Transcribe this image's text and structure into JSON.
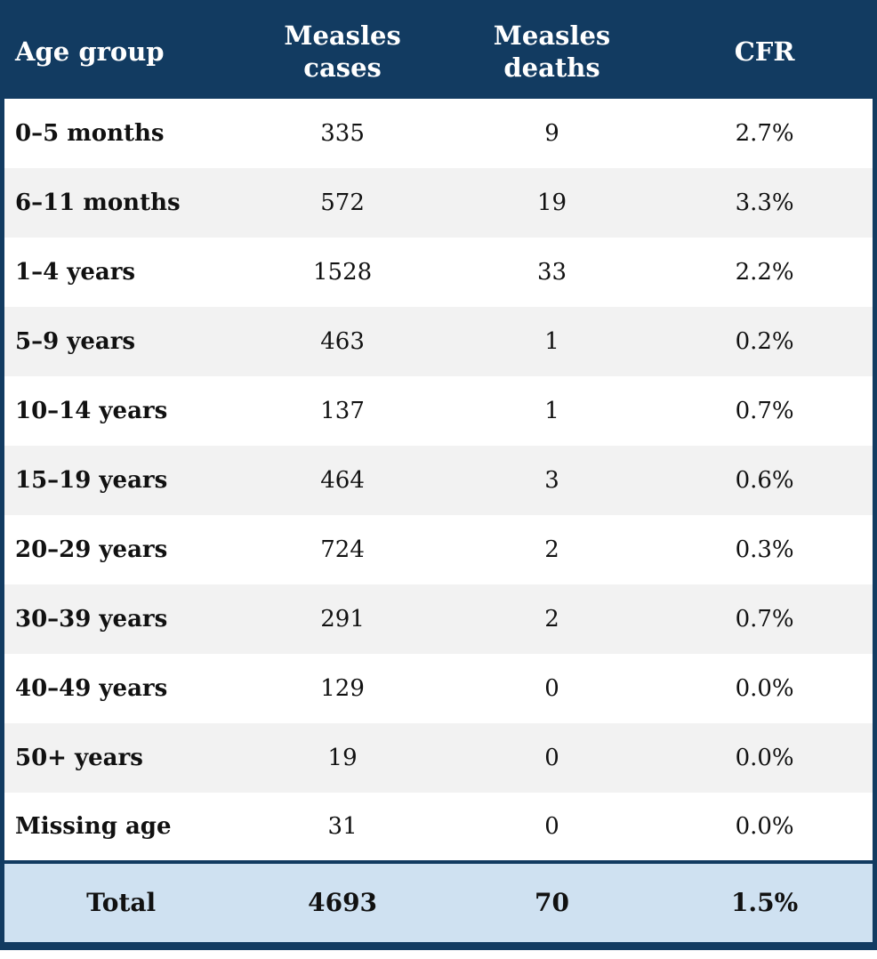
{
  "colors": {
    "header_bg": "#123b61",
    "border": "#123b61",
    "stripe_bg": "#f2f2f2",
    "total_bg": "#cfe1f1",
    "header_text": "#ffffff",
    "body_text": "#111111"
  },
  "chart_data": {
    "type": "table",
    "columns": [
      "Age group",
      "Measles\ncases",
      "Measles\ndeaths",
      "CFR"
    ],
    "rows": [
      {
        "age_group": "0–5 months",
        "cases": 335,
        "deaths": 9,
        "cfr": "2.7%"
      },
      {
        "age_group": "6–11 months",
        "cases": 572,
        "deaths": 19,
        "cfr": "3.3%"
      },
      {
        "age_group": "1–4 years",
        "cases": 1528,
        "deaths": 33,
        "cfr": "2.2%"
      },
      {
        "age_group": "5–9 years",
        "cases": 463,
        "deaths": 1,
        "cfr": "0.2%"
      },
      {
        "age_group": "10–14 years",
        "cases": 137,
        "deaths": 1,
        "cfr": "0.7%"
      },
      {
        "age_group": "15–19 years",
        "cases": 464,
        "deaths": 3,
        "cfr": "0.6%"
      },
      {
        "age_group": "20–29 years",
        "cases": 724,
        "deaths": 2,
        "cfr": "0.3%"
      },
      {
        "age_group": "30–39 years",
        "cases": 291,
        "deaths": 2,
        "cfr": "0.7%"
      },
      {
        "age_group": "40–49 years",
        "cases": 129,
        "deaths": 0,
        "cfr": "0.0%"
      },
      {
        "age_group": "50+ years",
        "cases": 19,
        "deaths": 0,
        "cfr": "0.0%"
      },
      {
        "age_group": "Missing age",
        "cases": 31,
        "deaths": 0,
        "cfr": "0.0%"
      }
    ],
    "total": {
      "label": "Total",
      "cases": 4693,
      "deaths": 70,
      "cfr": "1.5%"
    }
  }
}
